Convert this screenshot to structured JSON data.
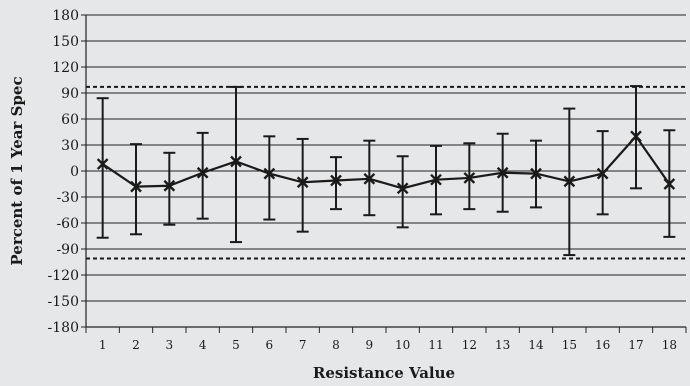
{
  "chart_data": {
    "type": "scatter",
    "xlabel": "Resistance Value",
    "ylabel": "Percent of 1 Year Spec",
    "x": [
      1,
      2,
      3,
      4,
      5,
      6,
      7,
      8,
      9,
      10,
      11,
      12,
      13,
      14,
      15,
      16,
      17,
      18
    ],
    "xticks": [
      "1",
      "2",
      "3",
      "4",
      "5",
      "6",
      "7",
      "8",
      "9",
      "10",
      "11",
      "12",
      "13",
      "14",
      "15",
      "16",
      "17",
      "18"
    ],
    "ylim": [
      -180,
      180
    ],
    "yticks": [
      -180,
      -150,
      -120,
      -90,
      -60,
      -30,
      0,
      30,
      60,
      90,
      120,
      150,
      180
    ],
    "ytick_labels": [
      "-180",
      "-150",
      "-120",
      "-90",
      "-60",
      "-30",
      "0",
      "30",
      "60",
      "90",
      "120",
      "150",
      "180"
    ],
    "grid": "horizontal",
    "series": [
      {
        "marker": "x",
        "line": "solid",
        "values": [
          8,
          -18,
          -17,
          -2,
          11,
          -3,
          -13,
          -11,
          -9,
          -20,
          -10,
          -8,
          -2,
          -3,
          -12,
          -3,
          40,
          -15
        ],
        "upper": [
          84,
          31,
          21,
          44,
          97,
          40,
          37,
          16,
          35,
          17,
          29,
          32,
          43,
          35,
          72,
          46,
          98,
          47
        ],
        "lower": [
          -77,
          -73,
          -62,
          -55,
          -82,
          -56,
          -70,
          -44,
          -51,
          -65,
          -50,
          -44,
          -47,
          -42,
          -97,
          -50,
          -20,
          -76
        ]
      }
    ],
    "reference_lines": [
      {
        "y": 97,
        "style": "dashed"
      },
      {
        "y": -101,
        "style": "dashed"
      }
    ],
    "colors": {
      "background": "#e6e7e8",
      "grid": "#222222",
      "series": "#1a1a1a",
      "text": "#1a1a1a"
    }
  }
}
